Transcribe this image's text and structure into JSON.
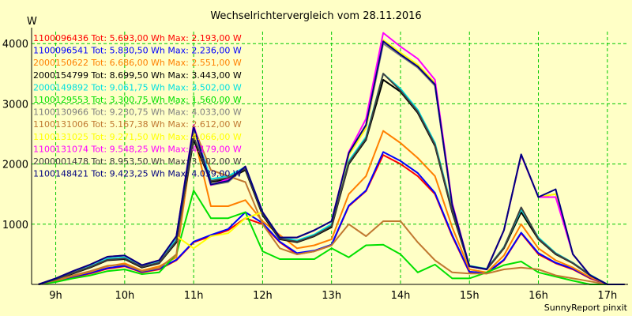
{
  "chart_data": {
    "type": "line",
    "title": "Wechselrichtervergleich vom 28.11.2016",
    "ylabel": "W",
    "xlabel": "",
    "footer": "SunnyReport pinxit",
    "ylim": [
      0,
      4200
    ],
    "xlim": [
      8.65,
      17.3
    ],
    "grid": true,
    "legend_placement": "top-left",
    "x_ticks": [
      {
        "value": 9,
        "label": "9h"
      },
      {
        "value": 10,
        "label": "10h"
      },
      {
        "value": 11,
        "label": "11h"
      },
      {
        "value": 12,
        "label": "12h"
      },
      {
        "value": 13,
        "label": "13h"
      },
      {
        "value": 14,
        "label": "14h"
      },
      {
        "value": 15,
        "label": "15h"
      },
      {
        "value": 16,
        "label": "16h"
      },
      {
        "value": 17,
        "label": "17h"
      }
    ],
    "y_ticks": [
      {
        "value": 1000,
        "label": "1000"
      },
      {
        "value": 2000,
        "label": "2000"
      },
      {
        "value": 3000,
        "label": "3000"
      },
      {
        "value": 4000,
        "label": "4000"
      }
    ],
    "x": [
      8.75,
      9.0,
      9.25,
      9.5,
      9.75,
      10.0,
      10.25,
      10.5,
      10.75,
      11.0,
      11.25,
      11.5,
      11.75,
      12.0,
      12.25,
      12.5,
      12.75,
      13.0,
      13.25,
      13.5,
      13.75,
      14.0,
      14.25,
      14.5,
      14.75,
      15.0,
      15.25,
      15.5,
      15.75,
      16.0,
      16.25,
      16.5,
      16.75,
      17.0,
      17.25
    ],
    "series": [
      {
        "name": "1100096436 Tot: 5.693,00 Wh Max: 2.193,00 W",
        "color": "#ff0000",
        "values": [
          0,
          50,
          120,
          180,
          260,
          300,
          200,
          250,
          400,
          700,
          800,
          900,
          1100,
          1000,
          700,
          500,
          550,
          650,
          1300,
          1550,
          2150,
          2000,
          1800,
          1500,
          800,
          200,
          180,
          400,
          850,
          500,
          350,
          250,
          100,
          0,
          0
        ]
      },
      {
        "name": "1100096541 Tot: 5.830,50 Wh Max: 2.236,00 W",
        "color": "#0000ff",
        "values": [
          0,
          50,
          130,
          190,
          270,
          310,
          210,
          260,
          410,
          710,
          820,
          920,
          1200,
          1020,
          710,
          520,
          560,
          660,
          1310,
          1560,
          2200,
          2050,
          1850,
          1520,
          820,
          210,
          190,
          410,
          860,
          520,
          360,
          260,
          110,
          0,
          0
        ]
      },
      {
        "name": "2000150622 Tot: 6.686,00 Wh Max: 2.551,00 W",
        "color": "#ff7f00",
        "values": [
          0,
          60,
          140,
          210,
          300,
          350,
          230,
          300,
          450,
          2500,
          1300,
          1300,
          1400,
          1050,
          820,
          600,
          650,
          750,
          1500,
          1800,
          2550,
          2350,
          2100,
          1800,
          950,
          250,
          200,
          480,
          1000,
          600,
          400,
          280,
          120,
          0,
          0
        ]
      },
      {
        "name": "2000154799 Tot: 8.699,50 Wh Max: 3.443,00 W",
        "color": "#000000",
        "values": [
          0,
          80,
          180,
          280,
          400,
          420,
          280,
          350,
          700,
          2400,
          1700,
          1750,
          1900,
          1150,
          750,
          700,
          800,
          950,
          2000,
          2400,
          3400,
          3200,
          2850,
          2300,
          1200,
          300,
          250,
          600,
          1200,
          750,
          500,
          350,
          150,
          0,
          0
        ]
      },
      {
        "name": "2000149892 Tot: 9.061,75 Wh Max: 3.502,00 W",
        "color": "#00e0e0",
        "values": [
          0,
          90,
          200,
          300,
          430,
          450,
          300,
          370,
          750,
          2600,
          1750,
          1800,
          1950,
          1200,
          780,
          730,
          830,
          1000,
          2050,
          2450,
          3500,
          3250,
          2900,
          2350,
          1250,
          310,
          260,
          620,
          1250,
          780,
          520,
          360,
          160,
          0,
          0
        ]
      },
      {
        "name": "1100129553 Tot: 3.300,75 Wh Max: 1.560,00 W",
        "color": "#00e000",
        "values": [
          0,
          40,
          100,
          150,
          220,
          250,
          170,
          200,
          500,
          1560,
          1100,
          1100,
          1200,
          550,
          420,
          420,
          420,
          600,
          450,
          650,
          660,
          500,
          200,
          330,
          100,
          100,
          200,
          320,
          380,
          200,
          130,
          60,
          0,
          0,
          0
        ]
      },
      {
        "name": "1100130966 Tot: 9.230,75 Wh Max: 4.033,00 W",
        "color": "#808080",
        "values": [
          0,
          100,
          220,
          330,
          460,
          480,
          320,
          400,
          800,
          2600,
          1650,
          1700,
          1950,
          1200,
          780,
          780,
          900,
          1050,
          2150,
          2600,
          4000,
          3800,
          3600,
          3300,
          1300,
          300,
          250,
          900,
          2150,
          1450,
          1500,
          500,
          150,
          0,
          0
        ]
      },
      {
        "name": "1100131006 Tot: 5.167,38 Wh Max: 2.612,00 W",
        "color": "#c07830",
        "values": [
          0,
          70,
          150,
          220,
          310,
          330,
          220,
          270,
          500,
          2612,
          1900,
          1800,
          1700,
          1000,
          600,
          500,
          550,
          650,
          1000,
          800,
          1050,
          1050,
          700,
          400,
          200,
          180,
          180,
          250,
          280,
          250,
          150,
          100,
          50,
          0,
          0
        ]
      },
      {
        "name": "1100131025 Tot: 9.271,50 Wh Max: 4.066,00 W",
        "color": "#ffff00",
        "values": [
          0,
          100,
          220,
          330,
          460,
          480,
          320,
          400,
          800,
          600,
          800,
          850,
          1100,
          1200,
          780,
          780,
          900,
          1050,
          2150,
          2600,
          4060,
          3850,
          3650,
          3350,
          1300,
          300,
          250,
          900,
          2150,
          1450,
          1500,
          500,
          150,
          0,
          0
        ]
      },
      {
        "name": "1100131074 Tot: 9.548,25 Wh Max: 4.179,00 W",
        "color": "#ff00ff",
        "values": [
          0,
          100,
          220,
          330,
          460,
          480,
          320,
          400,
          800,
          2650,
          1650,
          1750,
          1950,
          1200,
          780,
          780,
          900,
          1050,
          2200,
          2750,
          4179,
          3950,
          3750,
          3400,
          1350,
          300,
          250,
          900,
          2150,
          1450,
          1450,
          500,
          150,
          0,
          0
        ]
      },
      {
        "name": "2000001478 Tot: 8.953,50 Wh Max: 3.502,00 W",
        "color": "#404040",
        "values": [
          0,
          85,
          190,
          290,
          410,
          430,
          290,
          360,
          720,
          2450,
          1720,
          1770,
          1920,
          1170,
          760,
          710,
          810,
          970,
          2020,
          2420,
          3502,
          3220,
          2870,
          2320,
          1220,
          305,
          255,
          610,
          1280,
          760,
          510,
          355,
          155,
          0,
          0
        ]
      },
      {
        "name": "1100148421 Tot: 9.423,25 Wh Max: 4.039,00 W",
        "color": "#000080",
        "values": [
          0,
          100,
          220,
          330,
          460,
          480,
          320,
          400,
          800,
          2620,
          1660,
          1720,
          1960,
          1200,
          780,
          780,
          900,
          1050,
          2180,
          2650,
          4039,
          3820,
          3620,
          3320,
          1320,
          300,
          250,
          900,
          2160,
          1450,
          1580,
          500,
          150,
          0,
          0
        ]
      }
    ]
  }
}
